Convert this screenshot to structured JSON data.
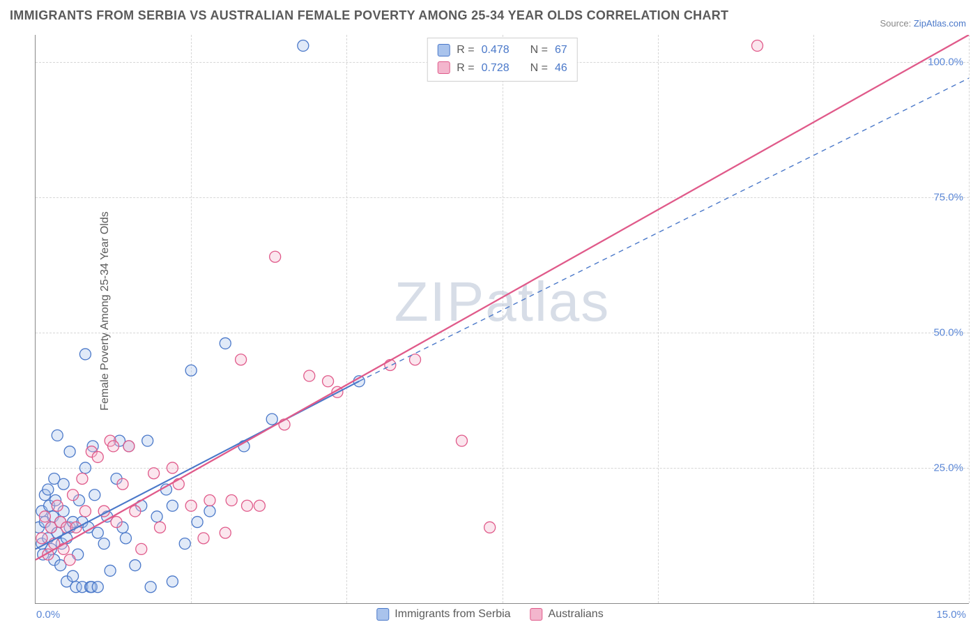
{
  "title": "IMMIGRANTS FROM SERBIA VS AUSTRALIAN FEMALE POVERTY AMONG 25-34 YEAR OLDS CORRELATION CHART",
  "source_prefix": "Source: ",
  "source_link": "ZipAtlas.com",
  "ylabel": "Female Poverty Among 25-34 Year Olds",
  "watermark": "ZIPatlas",
  "chart": {
    "type": "scatter",
    "xlim": [
      0,
      15
    ],
    "ylim": [
      0,
      105
    ],
    "x_ticks_major": [
      0,
      5,
      10,
      15
    ],
    "x_ticks_minor": [
      2.5,
      7.5,
      12.5
    ],
    "y_ticks": [
      25,
      50,
      75,
      100
    ],
    "x_tick_labels": {
      "0": "0.0%",
      "15": "15.0%"
    },
    "y_tick_labels": {
      "25": "25.0%",
      "50": "50.0%",
      "75": "75.0%",
      "100": "100.0%"
    },
    "grid_color": "#d6d6d6",
    "axis_color": "#888888",
    "background_color": "#ffffff",
    "marker_radius": 8,
    "marker_stroke_width": 1.3,
    "marker_fill_opacity": 0.35,
    "series": [
      {
        "name": "Immigrants from Serbia",
        "color_stroke": "#4a78c9",
        "color_fill": "#a9c3ec",
        "R": "0.478",
        "N": "67",
        "trendline": {
          "x1": 0,
          "y1": 10,
          "x2": 5.2,
          "y2": 41,
          "style": "solid",
          "width": 2.1
        },
        "trendline_ext": {
          "x1": 5.2,
          "y1": 41,
          "x2": 15,
          "y2": 97,
          "style": "dashed",
          "width": 1.4
        },
        "points": [
          [
            0.05,
            14
          ],
          [
            0.1,
            17
          ],
          [
            0.1,
            11
          ],
          [
            0.12,
            9
          ],
          [
            0.15,
            15
          ],
          [
            0.15,
            20
          ],
          [
            0.2,
            12
          ],
          [
            0.2,
            21
          ],
          [
            0.22,
            18
          ],
          [
            0.25,
            10
          ],
          [
            0.25,
            14
          ],
          [
            0.28,
            16
          ],
          [
            0.3,
            23
          ],
          [
            0.3,
            8
          ],
          [
            0.32,
            19
          ],
          [
            0.35,
            13
          ],
          [
            0.35,
            31
          ],
          [
            0.4,
            15
          ],
          [
            0.4,
            7
          ],
          [
            0.42,
            11
          ],
          [
            0.45,
            17
          ],
          [
            0.45,
            22
          ],
          [
            0.5,
            4
          ],
          [
            0.5,
            12
          ],
          [
            0.55,
            14
          ],
          [
            0.55,
            28
          ],
          [
            0.6,
            15
          ],
          [
            0.6,
            5
          ],
          [
            0.65,
            3
          ],
          [
            0.68,
            9
          ],
          [
            0.7,
            19
          ],
          [
            0.75,
            15
          ],
          [
            0.75,
            3
          ],
          [
            0.8,
            25
          ],
          [
            0.8,
            46
          ],
          [
            0.85,
            14
          ],
          [
            0.88,
            3
          ],
          [
            0.9,
            3
          ],
          [
            0.92,
            29
          ],
          [
            0.95,
            20
          ],
          [
            1.0,
            13
          ],
          [
            1.0,
            3
          ],
          [
            1.1,
            11
          ],
          [
            1.15,
            16
          ],
          [
            1.2,
            6
          ],
          [
            1.3,
            23
          ],
          [
            1.35,
            30
          ],
          [
            1.4,
            14
          ],
          [
            1.45,
            12
          ],
          [
            1.5,
            29
          ],
          [
            1.6,
            7
          ],
          [
            1.7,
            18
          ],
          [
            1.8,
            30
          ],
          [
            1.85,
            3
          ],
          [
            1.95,
            16
          ],
          [
            2.1,
            21
          ],
          [
            2.2,
            4
          ],
          [
            2.2,
            18
          ],
          [
            2.4,
            11
          ],
          [
            2.5,
            43
          ],
          [
            2.6,
            15
          ],
          [
            2.8,
            17
          ],
          [
            3.05,
            48
          ],
          [
            3.35,
            29
          ],
          [
            3.8,
            34
          ],
          [
            4.3,
            103
          ],
          [
            5.2,
            41
          ]
        ]
      },
      {
        "name": "Australians",
        "color_stroke": "#e05a8a",
        "color_fill": "#f3b6cd",
        "R": "0.728",
        "N": "46",
        "trendline": {
          "x1": 0,
          "y1": 8,
          "x2": 15,
          "y2": 105,
          "style": "solid",
          "width": 2.3
        },
        "points": [
          [
            0.1,
            12
          ],
          [
            0.15,
            16
          ],
          [
            0.2,
            9
          ],
          [
            0.25,
            14
          ],
          [
            0.3,
            11
          ],
          [
            0.35,
            18
          ],
          [
            0.4,
            15
          ],
          [
            0.45,
            10
          ],
          [
            0.5,
            14
          ],
          [
            0.55,
            8
          ],
          [
            0.6,
            20
          ],
          [
            0.65,
            14
          ],
          [
            0.75,
            23
          ],
          [
            0.8,
            17
          ],
          [
            0.9,
            28
          ],
          [
            1.0,
            27
          ],
          [
            1.1,
            17
          ],
          [
            1.2,
            30
          ],
          [
            1.25,
            29
          ],
          [
            1.3,
            15
          ],
          [
            1.4,
            22
          ],
          [
            1.5,
            29
          ],
          [
            1.6,
            17
          ],
          [
            1.7,
            10
          ],
          [
            1.9,
            24
          ],
          [
            2.0,
            14
          ],
          [
            2.2,
            25
          ],
          [
            2.3,
            22
          ],
          [
            2.5,
            18
          ],
          [
            2.7,
            12
          ],
          [
            2.8,
            19
          ],
          [
            3.05,
            13
          ],
          [
            3.15,
            19
          ],
          [
            3.3,
            45
          ],
          [
            3.4,
            18
          ],
          [
            3.6,
            18
          ],
          [
            3.85,
            64
          ],
          [
            4.0,
            33
          ],
          [
            4.4,
            42
          ],
          [
            4.7,
            41
          ],
          [
            4.85,
            39
          ],
          [
            5.7,
            44
          ],
          [
            6.1,
            45
          ],
          [
            6.85,
            30
          ],
          [
            7.3,
            14
          ],
          [
            11.6,
            103
          ]
        ]
      }
    ]
  },
  "legend_top": {
    "R_label": "R =",
    "N_label": "N ="
  },
  "legend_bottom": {
    "items": [
      "Immigrants from Serbia",
      "Australians"
    ]
  }
}
